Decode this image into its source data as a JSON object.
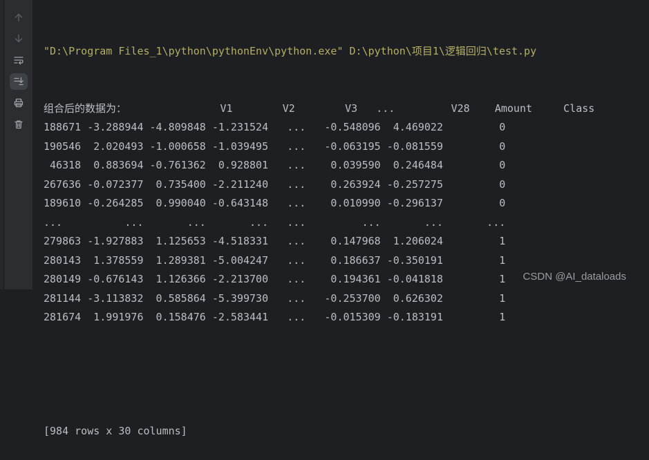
{
  "toolbar": {
    "icons": [
      {
        "name": "up-arrow-icon",
        "state": "disabled"
      },
      {
        "name": "down-arrow-icon",
        "state": "disabled"
      },
      {
        "name": "soft-wrap-icon",
        "state": "normal"
      },
      {
        "name": "scroll-to-end-icon",
        "state": "selected"
      },
      {
        "name": "print-icon",
        "state": "normal"
      },
      {
        "name": "clear-all-icon",
        "state": "normal"
      }
    ]
  },
  "console": {
    "command": "\"D:\\Program Files_1\\python\\pythonEnv\\python.exe\" D:\\python\\项目1\\逻辑回归\\test.py",
    "table": {
      "label": "组合后的数据为：",
      "columns": [
        "V1",
        "V2",
        "V3",
        "...",
        "V28",
        "Amount",
        "Class"
      ],
      "rows": [
        [
          "188671",
          "-3.288944",
          "-4.809848",
          "-1.231524",
          "...",
          "-0.548096",
          "4.469022",
          "0"
        ],
        [
          "190546",
          "2.020493",
          "-1.000658",
          "-1.039495",
          "...",
          "-0.063195",
          "-0.081559",
          "0"
        ],
        [
          "46318",
          "0.883694",
          "-0.761362",
          "0.928801",
          "...",
          "0.039590",
          "0.246484",
          "0"
        ],
        [
          "267636",
          "-0.072377",
          "0.735400",
          "-2.211240",
          "...",
          "0.263924",
          "-0.257275",
          "0"
        ],
        [
          "189610",
          "-0.264285",
          "0.990040",
          "-0.643148",
          "...",
          "0.010990",
          "-0.296137",
          "0"
        ],
        [
          "...",
          "...",
          "...",
          "...",
          "...",
          "...",
          "...",
          "..."
        ],
        [
          "279863",
          "-1.927883",
          "1.125653",
          "-4.518331",
          "...",
          "0.147968",
          "1.206024",
          "1"
        ],
        [
          "280143",
          "1.378559",
          "1.289381",
          "-5.004247",
          "...",
          "0.186637",
          "-0.350191",
          "1"
        ],
        [
          "280149",
          "-0.676143",
          "1.126366",
          "-2.213700",
          "...",
          "0.194361",
          "-0.041818",
          "1"
        ],
        [
          "281144",
          "-3.113832",
          "0.585864",
          "-5.399730",
          "...",
          "-0.253700",
          "0.626302",
          "1"
        ],
        [
          "281674",
          "1.991976",
          "0.158476",
          "-2.583441",
          "...",
          "-0.015309",
          "-0.183191",
          "1"
        ]
      ]
    },
    "footer": "[984 rows x 30 columns]"
  },
  "watermark": "CSDN @AI_dataloads",
  "colors": {
    "background": "#1e1f22",
    "toolbar_background": "#2b2d30",
    "selected_icon_background": "#3e4146",
    "command_text": "#b5af63",
    "table_text": "#bcbec4",
    "watermark_text": "#9a9da2"
  }
}
